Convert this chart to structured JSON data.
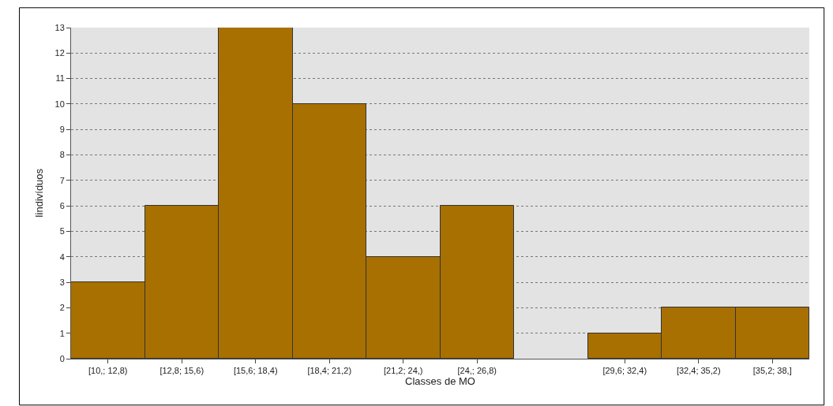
{
  "chart_data": {
    "type": "bar",
    "xlabel": "Classes de MO",
    "ylabel": "Iindivíduos",
    "categories": [
      "[10,; 12,8)",
      "[12,8; 15,6)",
      "[15,6; 18,4)",
      "[18,4; 21,2)",
      "[21,2; 24,)",
      "[24,; 26,8)",
      null,
      "[29,6; 32,4)",
      "[32,4; 35,2)",
      "[35,2; 38,]"
    ],
    "values": [
      3,
      6,
      13,
      10,
      4,
      6,
      0,
      1,
      2,
      2
    ],
    "color": "#a87000",
    "ylim": [
      0,
      13
    ],
    "yticks": [
      0,
      1,
      2,
      3,
      4,
      5,
      6,
      7,
      8,
      9,
      10,
      11,
      12,
      13
    ],
    "grid": "y",
    "legend": false
  }
}
